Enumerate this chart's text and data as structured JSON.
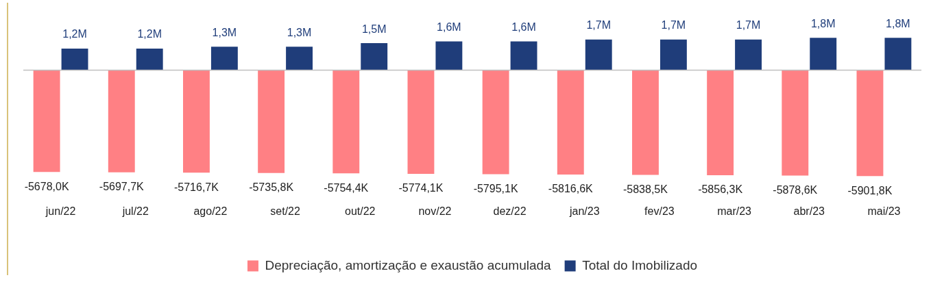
{
  "chart_data": {
    "type": "bar",
    "categories": [
      "jun/22",
      "jul/22",
      "ago/22",
      "set/22",
      "out/22",
      "nov/22",
      "dez/22",
      "jan/23",
      "fev/23",
      "mar/23",
      "abr/23",
      "mai/23"
    ],
    "series": [
      {
        "name": "Depreciação, amortização e exaustão acumulada",
        "color": "#ff8084",
        "values": [
          -5678000,
          -5697700,
          -5716700,
          -5735800,
          -5754400,
          -5774100,
          -5795100,
          -5816600,
          -5838500,
          -5856300,
          -5878600,
          -5901800
        ],
        "value_labels": [
          "-5678,0K",
          "-5697,7K",
          "-5716,7K",
          "-5735,8K",
          "-5754,4K",
          "-5774,1K",
          "-5795,1K",
          "-5816,6K",
          "-5838,5K",
          "-5856,3K",
          "-5878,6K",
          "-5901,8K"
        ]
      },
      {
        "name": "Total do Imobilizado",
        "color": "#1f3d7a",
        "values": [
          1200000,
          1200000,
          1300000,
          1300000,
          1500000,
          1600000,
          1600000,
          1700000,
          1700000,
          1700000,
          1800000,
          1800000
        ],
        "value_labels": [
          "1,2M",
          "1,2M",
          "1,3M",
          "1,3M",
          "1,5M",
          "1,6M",
          "1,6M",
          "1,7M",
          "1,7M",
          "1,7M",
          "1,8M",
          "1,8M"
        ]
      }
    ],
    "legend": "bottom",
    "grid": false
  }
}
